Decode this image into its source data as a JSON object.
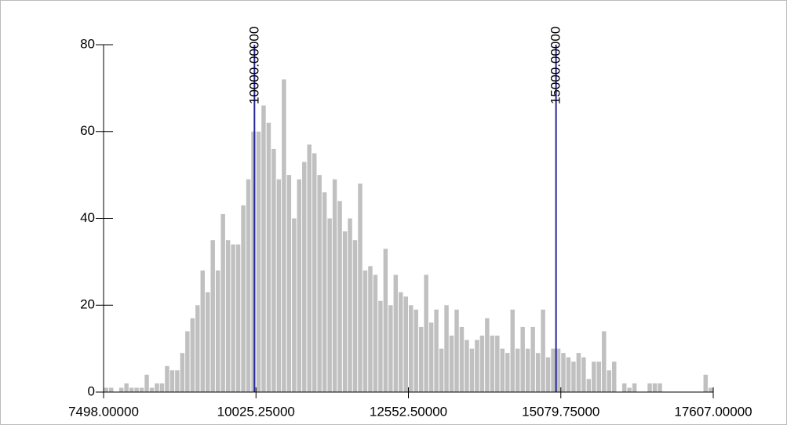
{
  "chart_data": {
    "type": "histogram",
    "color": "#c0c0c0",
    "bins": [
      7498,
      7582.24,
      7666.48,
      7750.73,
      7834.97,
      7919.21,
      8003.45,
      8087.69,
      8171.93,
      8256.18,
      8340.42,
      8424.66,
      8508.9,
      8593.14,
      8677.38,
      8761.63,
      8845.87,
      8930.11,
      9014.35,
      9098.59,
      9182.83,
      9267.08,
      9351.32,
      9435.56,
      9519.8,
      9604.04,
      9688.28,
      9772.53,
      9856.77,
      9941.01,
      10025.25,
      10109.49,
      10193.73,
      10277.98,
      10362.22,
      10446.46,
      10530.7,
      10614.94,
      10699.18,
      10783.43,
      10867.67,
      10951.91,
      11036.15,
      11120.39,
      11204.63,
      11288.88,
      11373.12,
      11457.36,
      11541.6,
      11625.84,
      11710.08,
      11794.33,
      11878.57,
      11962.81,
      12047.05,
      12131.29,
      12215.53,
      12299.78,
      12384.02,
      12468.26,
      12552.5,
      12636.74,
      12720.98,
      12805.23,
      12889.47,
      12973.71,
      13057.95,
      13142.19,
      13226.43,
      13310.68,
      13394.92,
      13479.16,
      13563.4,
      13647.64,
      13731.88,
      13816.13,
      13900.37,
      13984.61,
      14068.85,
      14153.09,
      14237.33,
      14321.58,
      14405.82,
      14490.06,
      14574.3,
      14658.54,
      14742.78,
      14827.03,
      14911.27,
      14995.51,
      15079.75,
      15163.99,
      15248.23,
      15332.48,
      15416.72,
      15500.96,
      15585.2,
      15669.44,
      15753.68,
      15837.93,
      15922.17,
      16006.41,
      16090.65,
      16174.89,
      16259.13,
      16343.38,
      16427.62,
      16511.86,
      16596.1,
      16680.34,
      16764.58,
      16848.83,
      16933.07,
      17017.31,
      17101.55,
      17185.79,
      17270.03,
      17354.28,
      17438.52,
      17522.76,
      17607
    ],
    "values": [
      1,
      1,
      0,
      1,
      2,
      1,
      1,
      1,
      4,
      1,
      2,
      2,
      6,
      5,
      5,
      9,
      14,
      17,
      20,
      28,
      23,
      35,
      28,
      41,
      35,
      34,
      34,
      43,
      49,
      60,
      60,
      66,
      62,
      56,
      49,
      72,
      50,
      40,
      49,
      53,
      57,
      55,
      50,
      46,
      40,
      49,
      44,
      37,
      40,
      35,
      48,
      28,
      29,
      27,
      21,
      33,
      20,
      27,
      23,
      22,
      20,
      19,
      15,
      27,
      16,
      19,
      10,
      20,
      13,
      19,
      15,
      12,
      10,
      12,
      13,
      17,
      13,
      13,
      10,
      9,
      19,
      10,
      15,
      10,
      15,
      9,
      19,
      8,
      10,
      10,
      9,
      8,
      7,
      9,
      8,
      3,
      7,
      7,
      14,
      5,
      7,
      0,
      2,
      1,
      2,
      0,
      0,
      2,
      2,
      2,
      0,
      0,
      0,
      0,
      0,
      0,
      0,
      0,
      4,
      1
    ],
    "xlim": [
      7498,
      17607
    ],
    "xticks": [
      {
        "value": 7498,
        "label": "7498.00000"
      },
      {
        "value": 10025.25,
        "label": "10025.25000"
      },
      {
        "value": 12552.5,
        "label": "12552.50000"
      },
      {
        "value": 15079.75,
        "label": "15079.75000"
      },
      {
        "value": 17607,
        "label": "17607.00000"
      }
    ],
    "ylim": [
      0,
      80
    ],
    "yticks": [
      0,
      20,
      40,
      60,
      80
    ],
    "vlines": [
      {
        "value": 10000,
        "label": "10000.00000",
        "color": "#26269a"
      },
      {
        "value": 15000,
        "label": "15000.00000",
        "color": "#26269a"
      }
    ]
  }
}
